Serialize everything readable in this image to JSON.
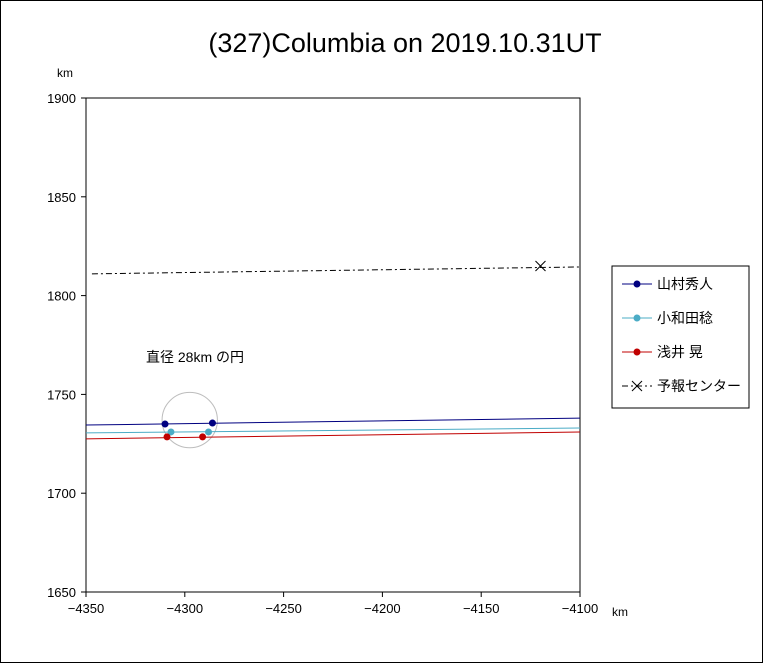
{
  "chart_data": {
    "type": "line",
    "title": "(327)Columbia on 2019.10.31UT",
    "x_unit": "km",
    "y_unit": "km",
    "xlim": [
      -4350,
      -4100
    ],
    "ylim": [
      1650,
      1900
    ],
    "x_ticks": [
      -4350,
      -4300,
      -4250,
      -4200,
      -4150,
      -4100
    ],
    "y_ticks": [
      1650,
      1700,
      1750,
      1800,
      1850,
      1900
    ],
    "x_tick_labels": [
      "−4350",
      "−4300",
      "−4250",
      "−4200",
      "−4150",
      "−4100"
    ],
    "y_tick_labels": [
      "1650",
      "1700",
      "1750",
      "1800",
      "1850",
      "1900"
    ],
    "grid": false,
    "legend_position": "right",
    "annotation": "直径 28km の円",
    "circle": {
      "cx": -4297.5,
      "cy": 1737,
      "diameter": 28
    },
    "series": [
      {
        "name": "山村秀人",
        "color": "#000080",
        "style": "solid",
        "line": [
          [
            -4350,
            1734.5
          ],
          [
            -4100,
            1738
          ]
        ],
        "points": [
          [
            -4310,
            1735
          ],
          [
            -4286,
            1735.5
          ]
        ],
        "marker": "dot"
      },
      {
        "name": "小和田稔",
        "color": "#4bacc6",
        "style": "solid",
        "line": [
          [
            -4350,
            1730.5
          ],
          [
            -4100,
            1733
          ]
        ],
        "points": [
          [
            -4307,
            1731
          ],
          [
            -4288,
            1731
          ]
        ],
        "marker": "dot"
      },
      {
        "name": "浅井 晃",
        "color": "#c00000",
        "style": "solid",
        "line": [
          [
            -4350,
            1727.5
          ],
          [
            -4100,
            1731
          ]
        ],
        "points": [
          [
            -4309,
            1728.5
          ],
          [
            -4291,
            1728.5
          ]
        ],
        "marker": "dot"
      },
      {
        "name": "予報センター",
        "color": "#000000",
        "style": "dashdot",
        "line": [
          [
            -4347,
            1811
          ],
          [
            -4100,
            1814.5
          ]
        ],
        "points": [
          [
            -4120,
            1815
          ]
        ],
        "marker": "x"
      }
    ]
  }
}
